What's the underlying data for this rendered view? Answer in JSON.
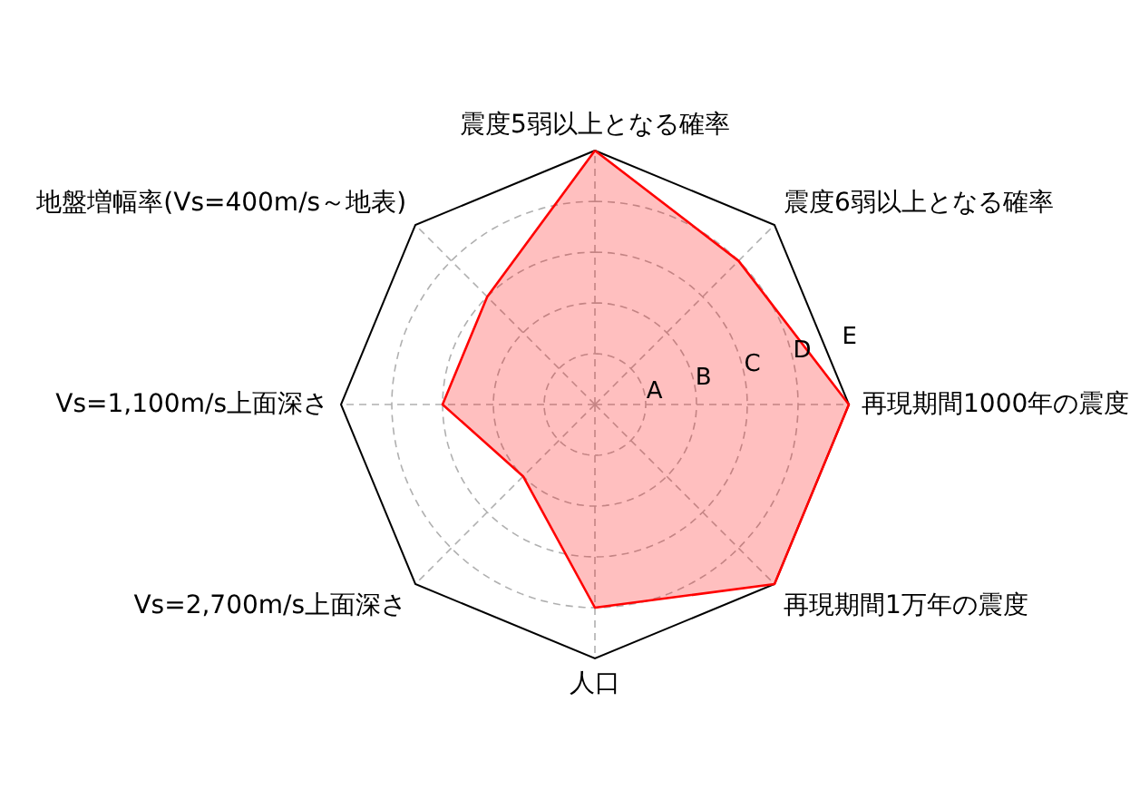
{
  "chart_data": {
    "type": "radar",
    "categories": [
      "震度5弱以上となる確率",
      "震度6弱以上となる確率",
      "再現期間1000年の震度",
      "再現期間1万年の震度",
      "人口",
      "Vs=2,700m/s上面深さ",
      "Vs=1,100m/s上面深さ",
      "地盤増幅率(Vs=400m/s～地表)"
    ],
    "series": [
      {
        "color": "#ff0000",
        "values": [
          5,
          4,
          5,
          5,
          4,
          2,
          3,
          3
        ]
      }
    ],
    "ylim": [
      0,
      5
    ],
    "yticks": [
      {
        "value": 1,
        "label": "A"
      },
      {
        "value": 2,
        "label": "B"
      },
      {
        "value": 3,
        "label": "C"
      },
      {
        "value": 4,
        "label": "D"
      },
      {
        "value": 5,
        "label": "E"
      }
    ],
    "grid": true
  }
}
